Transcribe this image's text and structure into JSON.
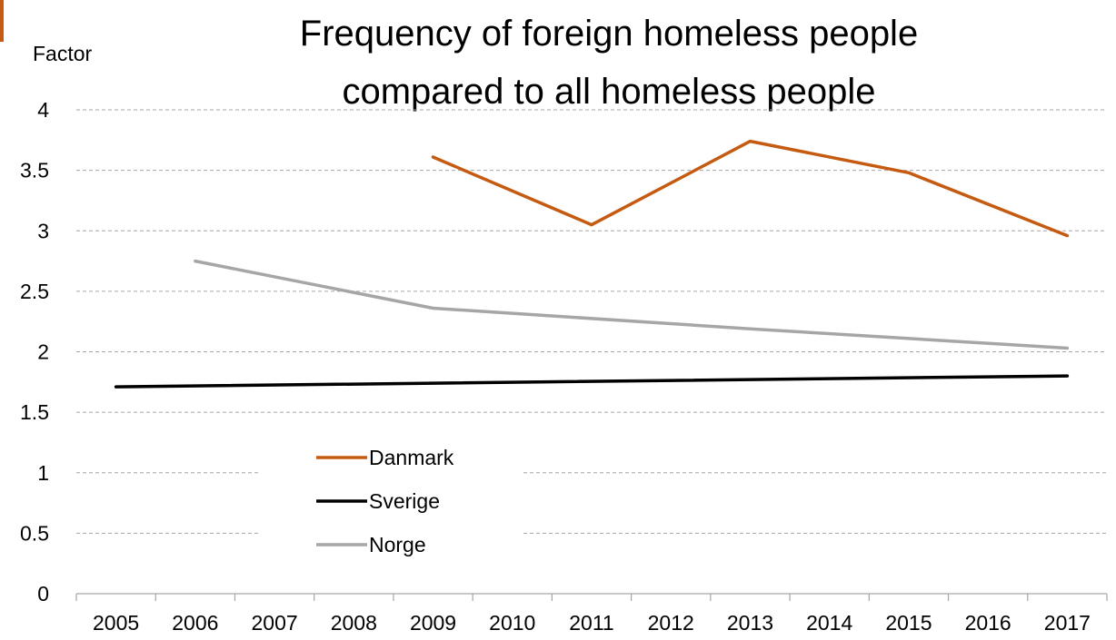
{
  "chart_data": {
    "type": "line",
    "title": [
      "Frequency of foreign homeless people",
      "compared to all homeless people"
    ],
    "ylabel": "Factor",
    "xlabel": "",
    "categories": [
      "2005",
      "2006",
      "2007",
      "2008",
      "2009",
      "2010",
      "2011",
      "2012",
      "2013",
      "2014",
      "2015",
      "2016",
      "2017"
    ],
    "yticks": [
      "0",
      "0.5",
      "1",
      "1.5",
      "2",
      "2.5",
      "3",
      "3.5",
      "4"
    ],
    "ylim": [
      0,
      4
    ],
    "grid": "horizontal-dashed",
    "legend_placement": "center",
    "series": [
      {
        "name": "Danmark",
        "color": "#C55A11",
        "points": [
          [
            2009,
            3.61
          ],
          [
            2011,
            3.05
          ],
          [
            2013,
            3.74
          ],
          [
            2015,
            3.48
          ],
          [
            2017,
            2.96
          ]
        ]
      },
      {
        "name": "Sverige",
        "color": "#000000",
        "points": [
          [
            2005,
            1.71
          ],
          [
            2017,
            1.8
          ]
        ]
      },
      {
        "name": "Norge",
        "color": "#A6A6A6",
        "points": [
          [
            2006,
            2.75
          ],
          [
            2009,
            2.36
          ],
          [
            2013,
            2.19
          ],
          [
            2017,
            2.03
          ]
        ]
      }
    ]
  },
  "colors": {
    "accent": "#C55A11",
    "grid": "#A6A6A6",
    "axis": "#A6A6A6"
  }
}
